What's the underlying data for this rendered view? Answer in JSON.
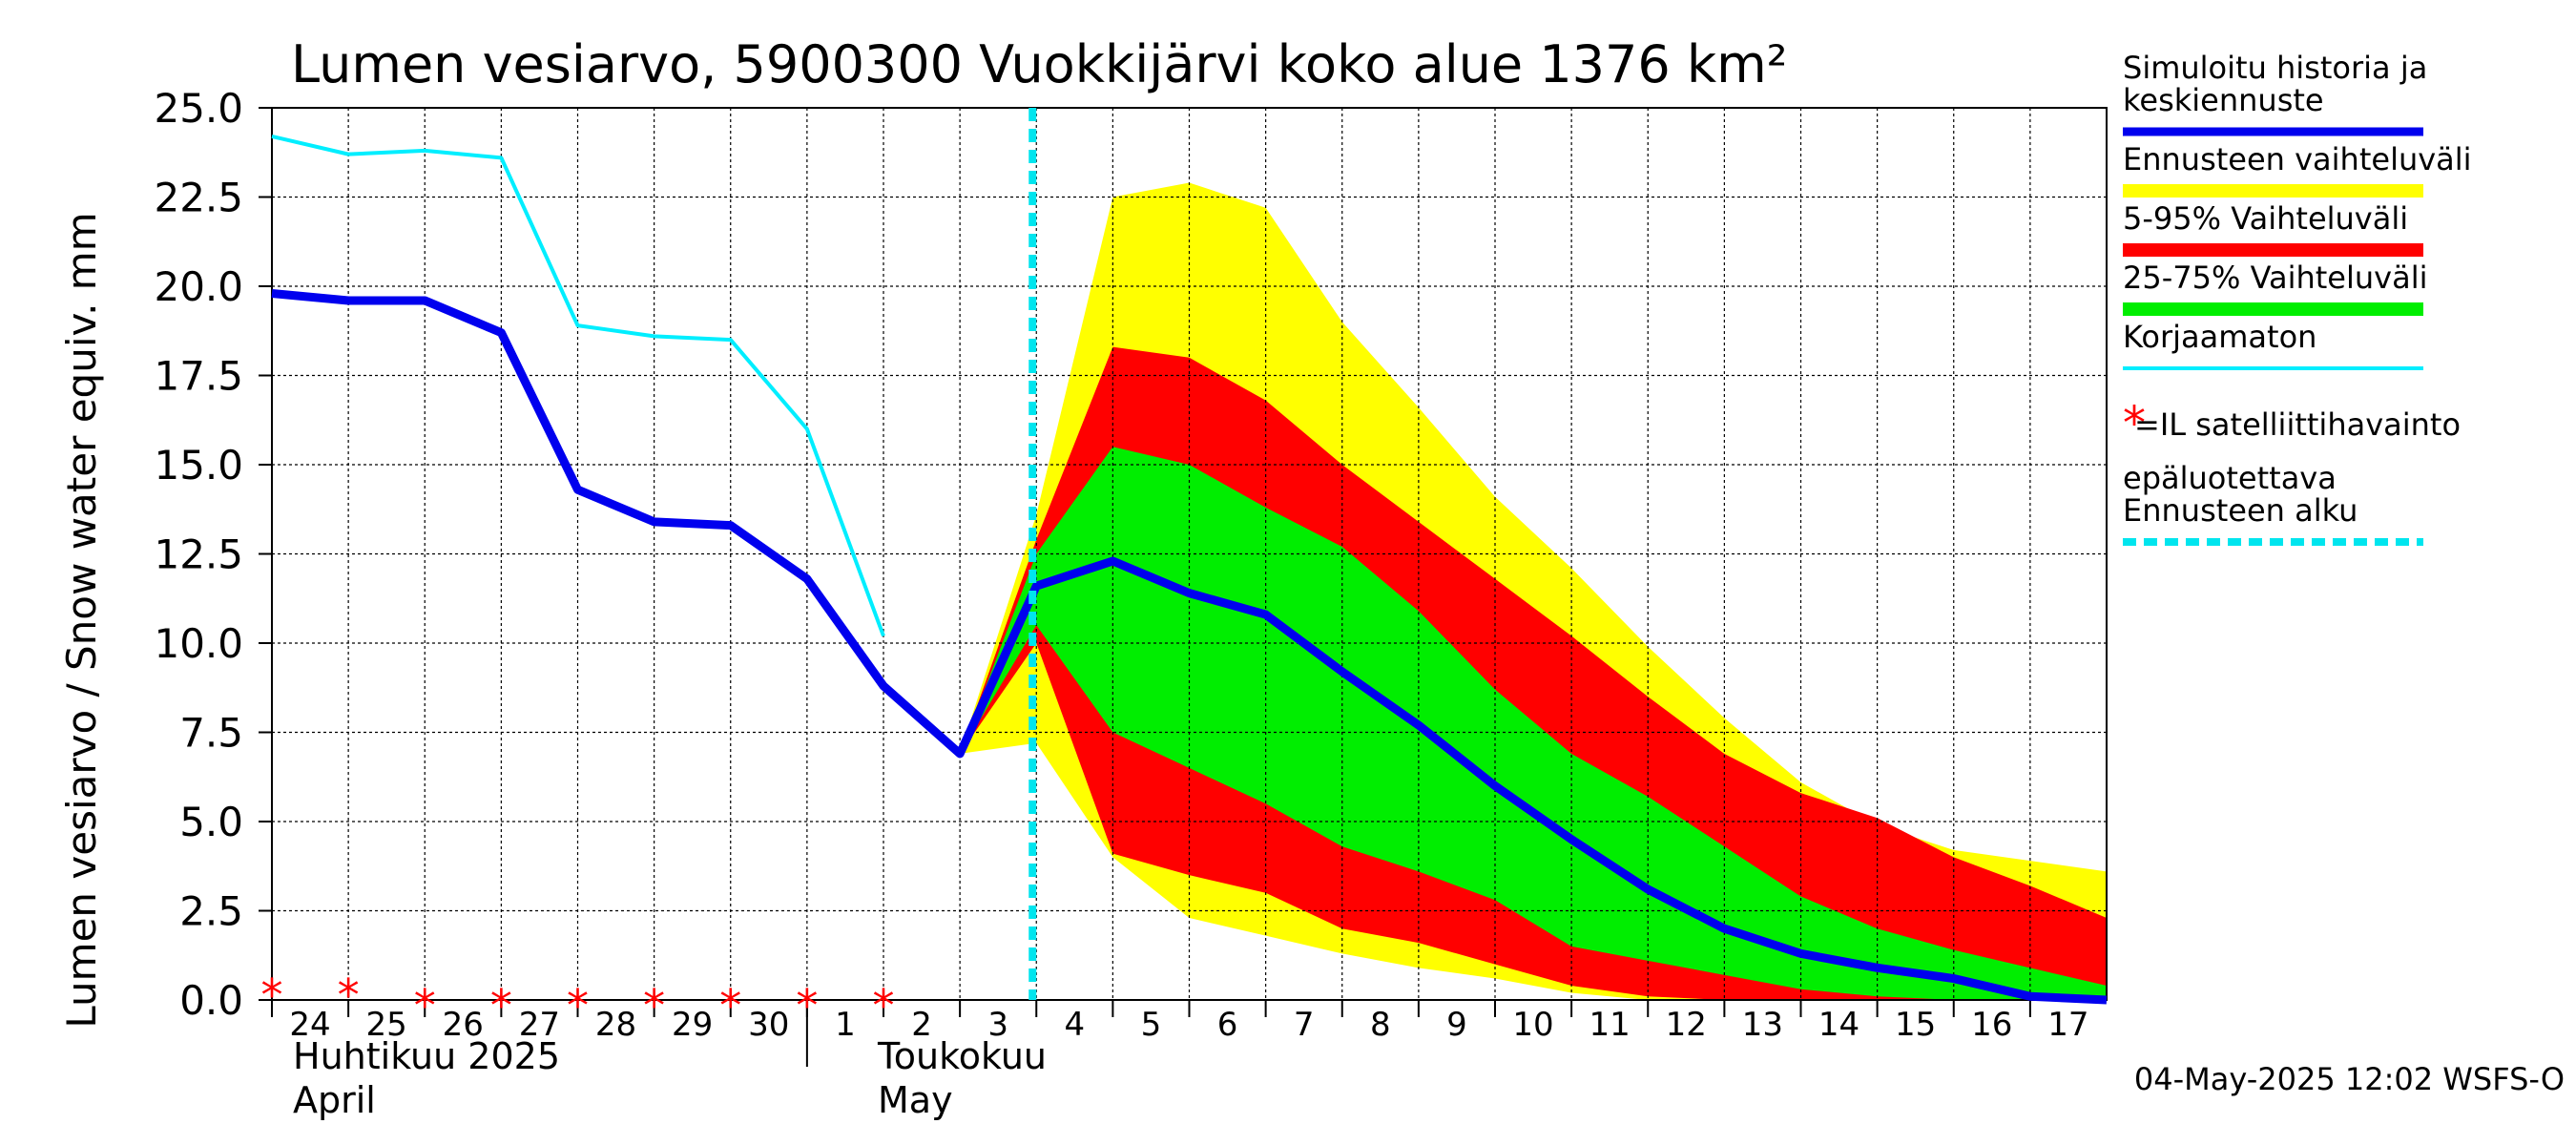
{
  "chart_data": {
    "type": "area",
    "title": "Lumen vesiarvo, 5900300 Vuokkijärvi koko alue 1376 km²",
    "ylabel": "Lumen vesiarvo / Snow water equiv.    mm",
    "ylim": [
      0,
      25
    ],
    "yticks": [
      "0.0",
      "2.5",
      "5.0",
      "7.5",
      "10.0",
      "12.5",
      "15.0",
      "17.5",
      "20.0",
      "22.5",
      "25.0"
    ],
    "grid": true,
    "x_days": [
      "24",
      "25",
      "26",
      "27",
      "28",
      "29",
      "30",
      "1",
      "2",
      "3",
      "4",
      "5",
      "6",
      "7",
      "8",
      "9",
      "10",
      "11",
      "12",
      "13",
      "14",
      "15",
      "16",
      "17"
    ],
    "month_labels": [
      {
        "fi": "Huhtikuu  2025",
        "en": "April"
      },
      {
        "fi": "Toukokuu",
        "en": "May"
      }
    ],
    "forecast_start_day_index": 9.95,
    "series": [
      {
        "name": "Ennusteen vaihteluväli",
        "color": "#ffff00",
        "x": [
          9,
          10,
          11,
          12,
          13,
          14,
          15,
          16,
          17,
          18,
          19,
          20,
          21,
          22,
          23,
          24
        ],
        "low": [
          6.9,
          7.2,
          4.0,
          2.3,
          1.8,
          1.3,
          0.9,
          0.6,
          0.2,
          0.0,
          0.0,
          0.0,
          0.0,
          0.0,
          0.0,
          0.0
        ],
        "high": [
          6.9,
          13.6,
          22.5,
          22.9,
          22.2,
          19.0,
          16.6,
          14.1,
          12.1,
          9.9,
          7.9,
          6.1,
          4.9,
          4.2,
          3.9,
          3.6
        ]
      },
      {
        "name": "5-95% Vaihteluväli",
        "color": "#ff0000",
        "x": [
          9,
          10,
          11,
          12,
          13,
          14,
          15,
          16,
          17,
          18,
          19,
          20,
          21,
          22,
          23,
          24
        ],
        "low": [
          6.9,
          10.0,
          4.1,
          3.5,
          3.0,
          2.0,
          1.6,
          1.0,
          0.4,
          0.1,
          0.0,
          0.0,
          0.0,
          0.0,
          0.0,
          0.0
        ],
        "high": [
          6.9,
          12.9,
          18.3,
          18.0,
          16.8,
          15.0,
          13.4,
          11.8,
          10.2,
          8.5,
          6.9,
          5.8,
          5.1,
          4.0,
          3.2,
          2.3
        ]
      },
      {
        "name": "25-75% Vaihteluväli",
        "color": "#00ee00",
        "x": [
          9,
          10,
          11,
          12,
          13,
          14,
          15,
          16,
          17,
          18,
          19,
          20,
          21,
          22,
          23,
          24
        ],
        "low": [
          6.9,
          10.5,
          7.5,
          6.5,
          5.5,
          4.3,
          3.6,
          2.8,
          1.5,
          1.1,
          0.7,
          0.3,
          0.1,
          0.0,
          0.0,
          0.0
        ],
        "high": [
          6.9,
          12.5,
          15.5,
          15.0,
          13.8,
          12.7,
          10.9,
          8.7,
          6.9,
          5.7,
          4.3,
          2.9,
          2.0,
          1.4,
          0.9,
          0.4
        ]
      },
      {
        "name": "Simuloitu historia ja keskiennuste",
        "color": "#0000ee",
        "x": [
          0,
          1,
          2,
          3,
          4,
          5,
          6,
          7,
          8,
          9,
          10,
          11,
          12,
          13,
          14,
          15,
          16,
          17,
          18,
          19,
          20,
          21,
          22,
          23,
          24
        ],
        "values": [
          19.8,
          19.6,
          19.6,
          18.7,
          14.3,
          13.4,
          13.3,
          11.8,
          8.8,
          6.9,
          11.6,
          12.3,
          11.4,
          10.8,
          9.2,
          7.7,
          6.0,
          4.5,
          3.1,
          2.0,
          1.3,
          0.9,
          0.6,
          0.1,
          0.0
        ]
      },
      {
        "name": "Korjaamaton",
        "color": "#00eeff",
        "x": [
          0,
          1,
          2,
          3,
          4,
          5,
          6,
          7,
          8
        ],
        "values": [
          24.2,
          23.7,
          23.8,
          23.6,
          18.9,
          18.6,
          18.5,
          16.0,
          10.2
        ]
      }
    ],
    "satellite_observations": {
      "x": [
        0,
        1,
        2,
        3,
        4,
        5,
        6,
        7,
        8
      ],
      "values": [
        0.3,
        0.3,
        0.0,
        0.0,
        0.0,
        0.0,
        0.0,
        0.0,
        0.0
      ],
      "color": "#ff0000"
    },
    "legend": {
      "placement": "right",
      "items": [
        {
          "label": "Simuloitu historia ja keskiennuste",
          "lines": [
            "Simuloitu historia ja",
            "keskiennuste"
          ],
          "color": "#0000ee",
          "style": "line"
        },
        {
          "label": "Ennusteen vaihteluväli",
          "lines": [
            "Ennusteen vaihteluväli"
          ],
          "color": "#ffff00",
          "style": "band"
        },
        {
          "label": "5-95% Vaihteluväli",
          "lines": [
            "5-95% Vaihteluväli"
          ],
          "color": "#ff0000",
          "style": "band"
        },
        {
          "label": "25-75% Vaihteluväli",
          "lines": [
            "25-75% Vaihteluväli"
          ],
          "color": "#00ee00",
          "style": "band"
        },
        {
          "label": "Korjaamaton",
          "lines": [
            "Korjaamaton"
          ],
          "color": "#00eeff",
          "style": "thin"
        },
        {
          "label": "=IL satelliittihavainto epäluotettava",
          "lines": [
            "=IL satelliittihavainto",
            "epäluotettava"
          ],
          "color": "#ff0000",
          "style": "star"
        },
        {
          "label": "Ennusteen alku",
          "lines": [
            "Ennusteen alku"
          ],
          "color": "#00e5ee",
          "style": "dashed"
        }
      ]
    },
    "footer": "04-May-2025 12:02 WSFS-O"
  }
}
